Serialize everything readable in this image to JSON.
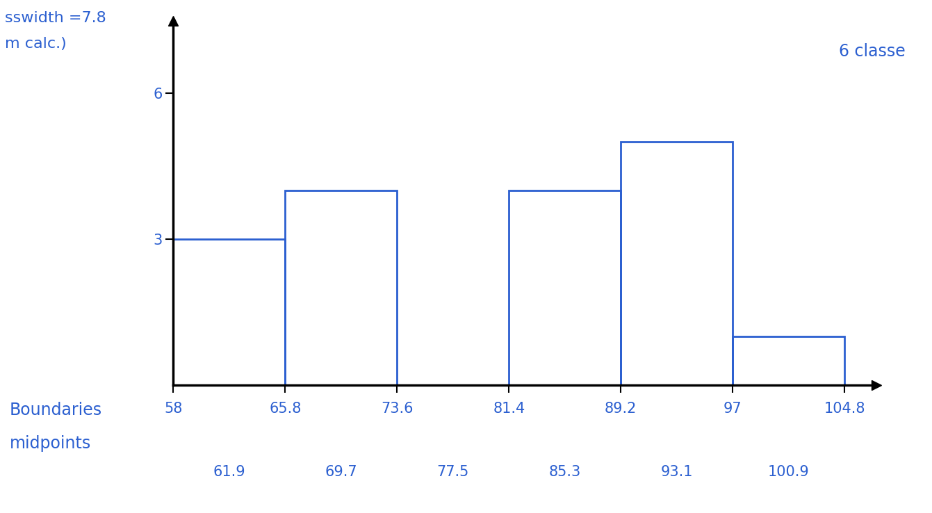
{
  "chart_data": {
    "type": "histogram",
    "bins": [
      58,
      65.8,
      73.6,
      81.4,
      89.2,
      97,
      104.8
    ],
    "counts": [
      3,
      4,
      0,
      4,
      5,
      1
    ],
    "midpoints": [
      61.9,
      69.7,
      77.5,
      85.3,
      93.1,
      100.9
    ],
    "xticks": [
      58,
      65.8,
      73.6,
      81.4,
      89.2,
      97,
      104.8
    ],
    "xlim": [
      58,
      107
    ],
    "ylim": [
      0,
      7.5
    ],
    "yticks": [
      3,
      6
    ],
    "color": "#2b5fd0",
    "row_labels": [
      "Boundaries",
      "midpoints"
    ],
    "annotations": [
      "sswidth =7.8",
      "m calc.)",
      "6 classe"
    ]
  }
}
